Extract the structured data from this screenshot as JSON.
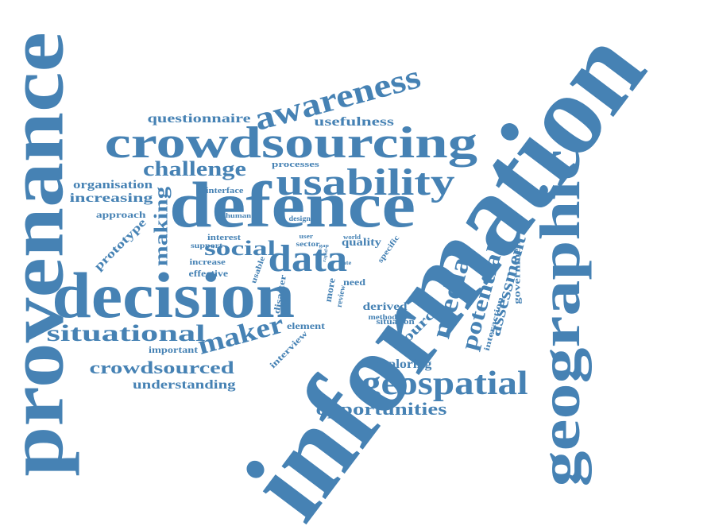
{
  "words": [
    {
      "text": "information"
    },
    {
      "text": "provenance"
    },
    {
      "text": "geographic"
    },
    {
      "text": "decision"
    },
    {
      "text": "defence"
    },
    {
      "text": "crowdsourcing"
    },
    {
      "text": "usability"
    },
    {
      "text": "awareness"
    },
    {
      "text": "data"
    },
    {
      "text": "geospatial"
    },
    {
      "text": "situational"
    },
    {
      "text": "maker"
    },
    {
      "text": "making"
    },
    {
      "text": "social"
    },
    {
      "text": "challenge"
    },
    {
      "text": "media"
    },
    {
      "text": "potential"
    },
    {
      "text": "assessment"
    },
    {
      "text": "crowdsourced"
    },
    {
      "text": "opportunities"
    },
    {
      "text": "questionnaire"
    },
    {
      "text": "usefulness"
    },
    {
      "text": "organisation"
    },
    {
      "text": "increasing"
    },
    {
      "text": "approach"
    },
    {
      "text": "prototype"
    },
    {
      "text": "understanding"
    },
    {
      "text": "exploring"
    },
    {
      "text": "derived"
    },
    {
      "text": "method"
    },
    {
      "text": "situation"
    },
    {
      "text": "source"
    },
    {
      "text": "element"
    },
    {
      "text": "important"
    },
    {
      "text": "interview"
    },
    {
      "text": "government"
    },
    {
      "text": "interaction"
    },
    {
      "text": "processes"
    },
    {
      "text": "interface"
    },
    {
      "text": "human"
    },
    {
      "text": "design"
    },
    {
      "text": "interest"
    },
    {
      "text": "support"
    },
    {
      "text": "increase"
    },
    {
      "text": "effective"
    },
    {
      "text": "usable"
    },
    {
      "text": "user"
    },
    {
      "text": "sector"
    },
    {
      "text": "gap"
    },
    {
      "text": "rapid"
    },
    {
      "text": "world"
    },
    {
      "text": "quality"
    },
    {
      "text": "specific"
    },
    {
      "text": "date"
    },
    {
      "text": "disaster"
    },
    {
      "text": "more"
    },
    {
      "text": "review"
    },
    {
      "text": "need"
    }
  ],
  "colors": {
    "word": "#4682b4",
    "background": "#ffffff"
  }
}
